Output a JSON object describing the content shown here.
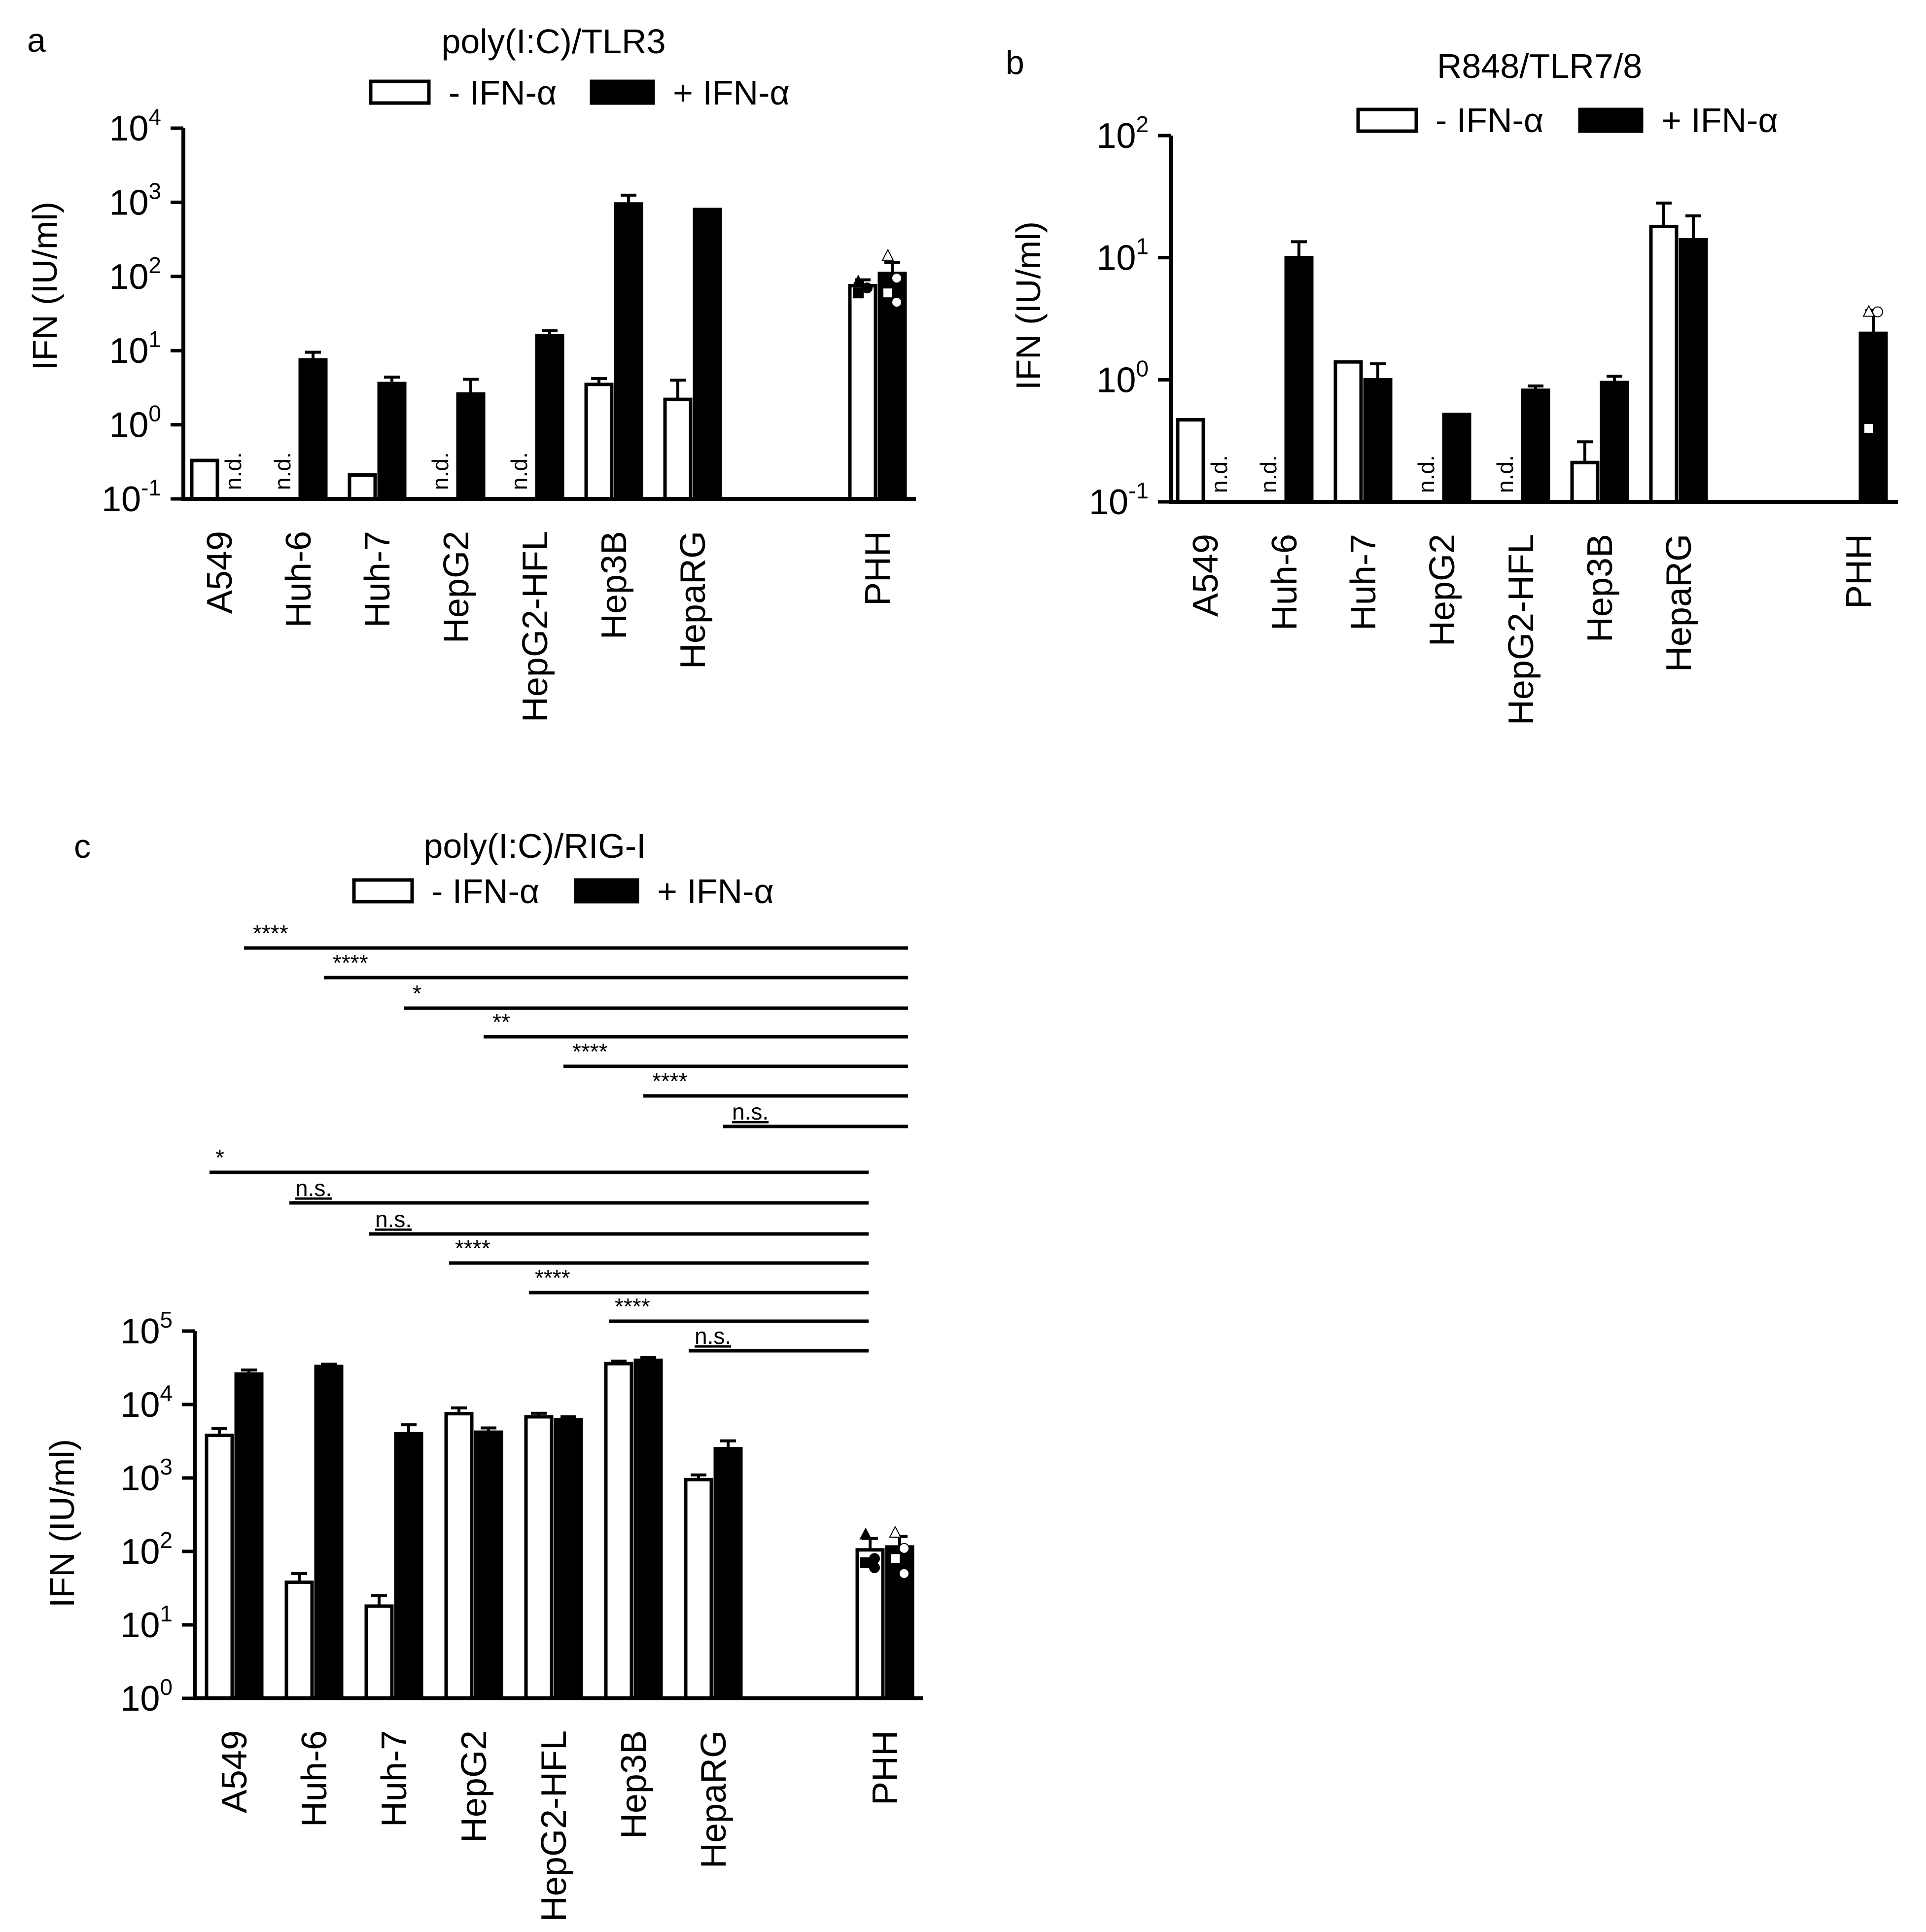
{
  "chart_data": [
    {
      "panel": "a",
      "type": "bar",
      "title": "poly(I:C)/TLR3",
      "ylabel": "IFN (IU/ml)",
      "yscale": "log",
      "ylim": [
        0.1,
        10000
      ],
      "yticks": [
        {
          "base": "10",
          "exp": "-1",
          "value": 0.1
        },
        {
          "base": "10",
          "exp": "0",
          "value": 1
        },
        {
          "base": "10",
          "exp": "1",
          "value": 10
        },
        {
          "base": "10",
          "exp": "2",
          "value": 100
        },
        {
          "base": "10",
          "exp": "3",
          "value": 1000
        },
        {
          "base": "10",
          "exp": "4",
          "value": 10000
        }
      ],
      "legend": [
        {
          "label": "- IFN-α",
          "color": "#ffffff"
        },
        {
          "label": "+ IFN-α",
          "color": "#000000"
        }
      ],
      "categories": [
        "A549",
        "Huh-6",
        "Huh-7",
        "HepG2",
        "HepG2-HFL",
        "Hep3B",
        "HepaRG",
        "PHH"
      ],
      "nd_label": "n.d.",
      "series": [
        {
          "name": "- IFN-α",
          "values": [
            0.33,
            null,
            0.21,
            null,
            null,
            3.5,
            2.2,
            75
          ],
          "errors": [
            0,
            null,
            0,
            null,
            null,
            0.7,
            1.8,
            15
          ],
          "nd": [
            false,
            true,
            false,
            true,
            true,
            false,
            false,
            false
          ]
        },
        {
          "name": "+ IFN-α",
          "values": [
            null,
            7.5,
            3.6,
            2.6,
            16,
            950,
            800,
            110
          ],
          "errors": [
            null,
            2,
            0.8,
            1.5,
            2.5,
            300,
            0,
            45
          ],
          "nd": [
            true,
            false,
            false,
            false,
            false,
            false,
            false,
            false
          ]
        }
      ],
      "points": [
        {
          "series": 0,
          "category": "PHH",
          "values": [
            85,
            70,
            60
          ]
        },
        {
          "series": 1,
          "category": "PHH",
          "values": [
            190,
            95,
            60,
            45
          ]
        }
      ]
    },
    {
      "panel": "b",
      "type": "bar",
      "title": "R848/TLR7/8",
      "ylabel": "IFN (IU/ml)",
      "yscale": "log",
      "ylim": [
        0.1,
        100
      ],
      "yticks": [
        {
          "base": "10",
          "exp": "-1",
          "value": 0.1
        },
        {
          "base": "10",
          "exp": "0",
          "value": 1
        },
        {
          "base": "10",
          "exp": "1",
          "value": 10
        },
        {
          "base": "10",
          "exp": "2",
          "value": 100
        }
      ],
      "legend": [
        {
          "label": "- IFN-α",
          "color": "#ffffff"
        },
        {
          "label": "+ IFN-α",
          "color": "#000000"
        }
      ],
      "categories": [
        "A549",
        "Huh-6",
        "Huh-7",
        "HepG2",
        "HepG2-HFL",
        "Hep3B",
        "HepaRG",
        "PHH"
      ],
      "nd_label": "n.d.",
      "series": [
        {
          "name": "- IFN-α",
          "values": [
            0.47,
            null,
            1.4,
            null,
            null,
            0.21,
            18,
            null
          ],
          "errors": [
            0,
            null,
            0,
            null,
            null,
            0.1,
            10,
            null
          ],
          "nd": [
            false,
            true,
            false,
            true,
            true,
            false,
            false,
            false
          ]
        },
        {
          "name": "+ IFN-α",
          "values": [
            null,
            10,
            1.0,
            0.52,
            0.82,
            0.95,
            14,
            2.4
          ],
          "errors": [
            null,
            3.5,
            0.35,
            0,
            0.07,
            0.12,
            8,
            1.3
          ],
          "nd": [
            true,
            false,
            false,
            false,
            false,
            false,
            false,
            false
          ]
        }
      ],
      "points": [
        {
          "series": 1,
          "category": "PHH",
          "values": [
            3.6,
            3.6,
            0.4
          ]
        }
      ]
    },
    {
      "panel": "c",
      "type": "bar",
      "title": "poly(I:C)/RIG-I",
      "ylabel": "IFN (IU/ml)",
      "yscale": "log",
      "ylim": [
        1,
        100000
      ],
      "yticks": [
        {
          "base": "10",
          "exp": "0",
          "value": 1
        },
        {
          "base": "10",
          "exp": "1",
          "value": 10
        },
        {
          "base": "10",
          "exp": "2",
          "value": 100
        },
        {
          "base": "10",
          "exp": "3",
          "value": 1000
        },
        {
          "base": "10",
          "exp": "4",
          "value": 10000
        },
        {
          "base": "10",
          "exp": "5",
          "value": 100000
        }
      ],
      "legend": [
        {
          "label": "- IFN-α",
          "color": "#ffffff"
        },
        {
          "label": "+ IFN-α",
          "color": "#000000"
        }
      ],
      "categories": [
        "A549",
        "Huh-6",
        "Huh-7",
        "HepG2",
        "HepG2-HFL",
        "Hep3B",
        "HepaRG",
        "PHH"
      ],
      "series": [
        {
          "name": "- IFN-α",
          "values": [
            3800,
            38,
            18,
            7500,
            6800,
            36000,
            950,
            105
          ],
          "errors": [
            900,
            12,
            7,
            1500,
            800,
            3000,
            150,
            45
          ],
          "nd": [
            false,
            false,
            false,
            false,
            false,
            false,
            false,
            false
          ]
        },
        {
          "name": "+ IFN-α",
          "values": [
            26000,
            33000,
            4000,
            4200,
            6200,
            40000,
            2500,
            115
          ],
          "errors": [
            3500,
            2500,
            1300,
            600,
            600,
            3500,
            700,
            45
          ],
          "nd": [
            false,
            false,
            false,
            false,
            false,
            false,
            false,
            false
          ]
        }
      ],
      "points": [
        {
          "series": 0,
          "category": "PHH",
          "values": [
            170,
            80,
            70,
            60
          ]
        },
        {
          "series": 1,
          "category": "PHH",
          "values": [
            180,
            110,
            80,
            50
          ]
        }
      ],
      "comparisons_plus_ifn": [
        {
          "from": "A549",
          "to": "PHH",
          "label": "****"
        },
        {
          "from": "Huh-6",
          "to": "PHH",
          "label": "****"
        },
        {
          "from": "Huh-7",
          "to": "PHH",
          "label": "*"
        },
        {
          "from": "HepG2",
          "to": "PHH",
          "label": "**"
        },
        {
          "from": "HepG2-HFL",
          "to": "PHH",
          "label": "****"
        },
        {
          "from": "Hep3B",
          "to": "PHH",
          "label": "****"
        },
        {
          "from": "HepaRG",
          "to": "PHH",
          "label": "n.s."
        }
      ],
      "comparisons_minus_ifn": [
        {
          "from": "A549",
          "to": "PHH",
          "label": "*"
        },
        {
          "from": "Huh-6",
          "to": "PHH",
          "label": "n.s."
        },
        {
          "from": "Huh-7",
          "to": "PHH",
          "label": "n.s."
        },
        {
          "from": "HepG2",
          "to": "PHH",
          "label": "****"
        },
        {
          "from": "HepG2-HFL",
          "to": "PHH",
          "label": "****"
        },
        {
          "from": "Hep3B",
          "to": "PHH",
          "label": "****"
        },
        {
          "from": "HepaRG",
          "to": "PHH",
          "label": "n.s."
        }
      ]
    }
  ]
}
